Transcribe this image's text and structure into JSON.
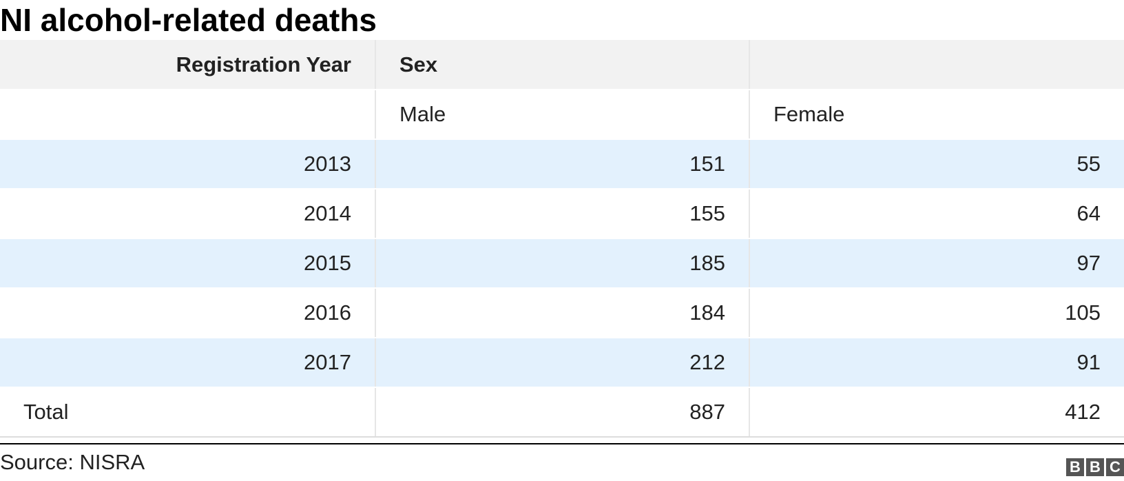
{
  "title": "NI alcohol-related deaths",
  "chart_data": {
    "type": "table",
    "title": "NI alcohol-related deaths",
    "header": [
      "Registration Year",
      "Sex",
      ""
    ],
    "subheader": [
      "",
      "Male",
      "Female"
    ],
    "rows": [
      {
        "year": "2013",
        "male": "151",
        "female": "55"
      },
      {
        "year": "2014",
        "male": "155",
        "female": "64"
      },
      {
        "year": "2015",
        "male": "185",
        "female": "97"
      },
      {
        "year": "2016",
        "male": "184",
        "female": "105"
      },
      {
        "year": "2017",
        "male": "212",
        "female": "91"
      }
    ],
    "total": {
      "label": "Total",
      "male": "887",
      "female": "412"
    }
  },
  "footer": {
    "source": "Source: NISRA",
    "logo_letters": [
      "B",
      "B",
      "C"
    ]
  },
  "colors": {
    "header_bg": "#f2f2f2",
    "alt_row_bg": "#e3f1fd",
    "logo_bg": "#555555"
  }
}
